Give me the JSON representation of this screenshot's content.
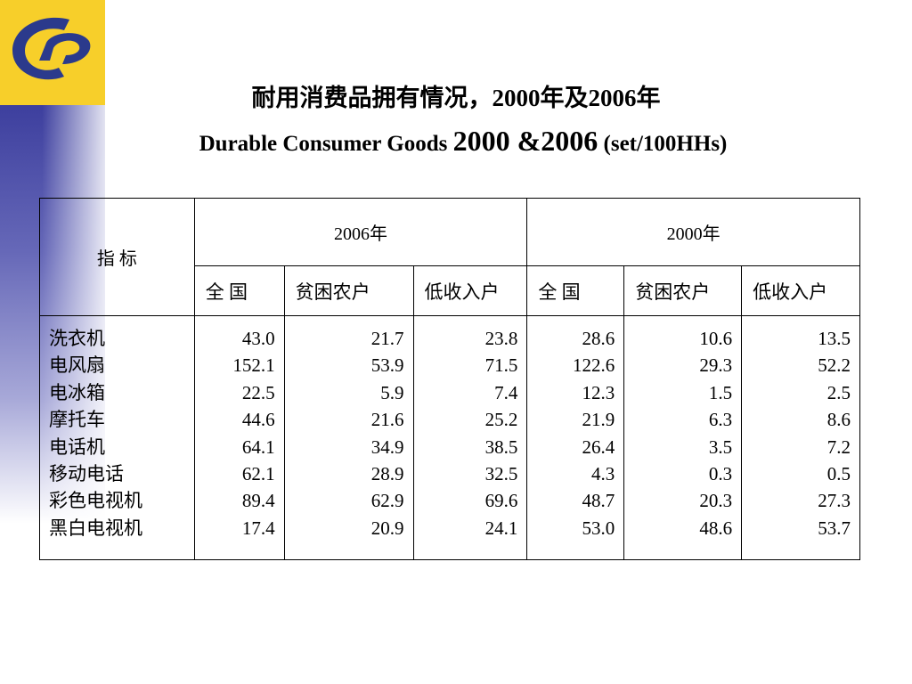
{
  "title_cn": "耐用消费品拥有情况，2000年及2006年",
  "title_en_main": "Durable Consumer Goods",
  "title_en_years": "2000 &2006",
  "title_en_unit": "(set/100HHs)",
  "table": {
    "indicator_header": "指 标",
    "year_headers": [
      "2006年",
      "2000年"
    ],
    "sub_headers": [
      "全 国",
      "贫困农户",
      "低收入户",
      "全 国",
      "贫困农户",
      "低收入户"
    ],
    "items": [
      "洗衣机",
      "电风扇",
      "电冰箱",
      "摩托车",
      "电话机",
      "移动电话",
      "彩色电视机",
      "黑白电视机"
    ],
    "columns": [
      [
        "43.0",
        "152.1",
        "22.5",
        "44.6",
        "64.1",
        "62.1",
        "89.4",
        "17.4"
      ],
      [
        "21.7",
        "53.9",
        "5.9",
        "21.6",
        "34.9",
        "28.9",
        "62.9",
        "20.9"
      ],
      [
        "23.8",
        "71.5",
        "7.4",
        "25.2",
        "38.5",
        "32.5",
        "69.6",
        "24.1"
      ],
      [
        "28.6",
        "122.6",
        "12.3",
        "21.9",
        "26.4",
        "4.3",
        "48.7",
        "53.0"
      ],
      [
        "10.6",
        "29.3",
        "1.5",
        "6.3",
        "3.5",
        "0.3",
        "20.3",
        "48.6"
      ],
      [
        "13.5",
        "52.2",
        "2.5",
        "8.6",
        "7.2",
        "0.5",
        "27.3",
        "53.7"
      ]
    ]
  },
  "colors": {
    "logo_background": "#f7cf2a",
    "logo_mark": "#2b3a8c",
    "side_strip": "#3d3f9e"
  },
  "icons": {
    "logo": "organization-logo-icon"
  }
}
